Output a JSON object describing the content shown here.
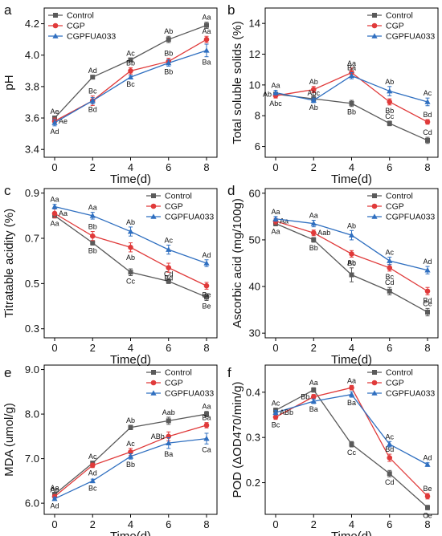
{
  "series_names": [
    "Control",
    "CGP",
    "CGPFUA033"
  ],
  "series_colors": [
    "#5a5a5a",
    "#e03a3a",
    "#2f6fc0"
  ],
  "markers": [
    "square",
    "circle",
    "triangle"
  ],
  "chart_data": [
    {
      "type": "line",
      "panel": "a",
      "xlabel": "Time(d)",
      "ylabel": "pH",
      "x": [
        0,
        2,
        4,
        6,
        8
      ],
      "x_ticks": [
        "0",
        "2",
        "4",
        "6",
        "8"
      ],
      "ylim": [
        3.35,
        4.3
      ],
      "y_ticks": [
        3.4,
        3.6,
        3.8,
        4.0,
        4.2
      ],
      "y_tick_labels": [
        "3.4",
        "3.6",
        "3.8",
        "4.0",
        "4.2"
      ],
      "legend_placement": "top-left",
      "series": [
        {
          "name": "Control",
          "values": [
            3.6,
            3.86,
            3.97,
            4.1,
            4.19
          ],
          "errors": [
            0.01,
            0.01,
            0.01,
            0.02,
            0.02
          ],
          "labels": [
            "Ae",
            "Ad",
            "Ac",
            "Ab",
            "Aa"
          ],
          "label_pos": [
            "above",
            "above",
            "above",
            "above",
            "above"
          ]
        },
        {
          "name": "CGP",
          "values": [
            3.58,
            3.71,
            3.9,
            3.96,
            4.1
          ],
          "errors": [
            0.02,
            0.03,
            0.02,
            0.02,
            0.02
          ],
          "labels": [
            "Ae",
            "Bc",
            "Bb",
            "Bb",
            "Aa"
          ],
          "label_pos": [
            "right",
            "above",
            "above",
            "above",
            "above"
          ]
        },
        {
          "name": "CGPFUA033",
          "values": [
            3.57,
            3.71,
            3.86,
            3.95,
            4.03
          ],
          "errors": [
            0.02,
            0.02,
            0.01,
            0.02,
            0.04
          ],
          "labels": [
            "Ad",
            "Bd",
            "Bc",
            "Bb",
            "Ba"
          ],
          "label_pos": [
            "below",
            "below",
            "below",
            "below",
            "below"
          ]
        }
      ]
    },
    {
      "type": "line",
      "panel": "b",
      "xlabel": "Time(d)",
      "ylabel": "Total soluble solids (%)",
      "x": [
        0,
        2,
        4,
        6,
        8
      ],
      "x_ticks": [
        "0",
        "2",
        "4",
        "6",
        "8"
      ],
      "ylim": [
        5.3,
        15
      ],
      "y_ticks": [
        6,
        8,
        10,
        12,
        14
      ],
      "y_tick_labels": [
        "6",
        "8",
        "10",
        "12",
        "14"
      ],
      "legend_placement": "top-right",
      "series": [
        {
          "name": "Control",
          "values": [
            9.4,
            9.1,
            8.8,
            7.5,
            6.4
          ],
          "errors": [
            0.1,
            0.2,
            0.2,
            0.15,
            0.2
          ],
          "labels": [
            "Ab",
            "Ab",
            "Bb",
            "Cc",
            "Cd"
          ],
          "label_pos": [
            "left",
            "below",
            "below",
            "above",
            "above"
          ]
        },
        {
          "name": "CGP",
          "values": [
            9.3,
            9.7,
            10.8,
            8.9,
            7.6
          ],
          "errors": [
            0.15,
            0.2,
            0.3,
            0.2,
            0.15
          ],
          "labels": [
            "Abc",
            "Ab",
            "Aa",
            "Bb",
            "Bd"
          ],
          "label_pos": [
            "below",
            "above",
            "above",
            "below",
            "above"
          ]
        },
        {
          "name": "CGPFUA033",
          "values": [
            9.5,
            9.0,
            10.6,
            9.6,
            8.9
          ],
          "errors": [
            0.15,
            0.15,
            0.2,
            0.3,
            0.25
          ],
          "labels": [
            "Aa",
            "Abc",
            "Ba",
            "Ab",
            "Ac"
          ],
          "label_pos": [
            "above",
            "above",
            "above",
            "above",
            "above"
          ]
        }
      ]
    },
    {
      "type": "line",
      "panel": "c",
      "xlabel": "Time(d)",
      "ylabel": "Titratable acidity (%)",
      "x": [
        0,
        2,
        4,
        6,
        8
      ],
      "x_ticks": [
        "0",
        "2",
        "4",
        "6",
        "8"
      ],
      "ylim": [
        0.26,
        0.92
      ],
      "y_ticks": [
        0.3,
        0.5,
        0.7,
        0.9
      ],
      "y_tick_labels": [
        "0.3",
        "0.5",
        "0.7",
        "0.9"
      ],
      "legend_placement": "top-right",
      "series": [
        {
          "name": "Control",
          "values": [
            0.8,
            0.68,
            0.55,
            0.51,
            0.44
          ],
          "errors": [
            0.01,
            0.01,
            0.015,
            0.01,
            0.015
          ],
          "labels": [
            "Aa",
            "Bb",
            "Cc",
            "Cd",
            "Be"
          ],
          "label_pos": [
            "below",
            "below",
            "below",
            "above",
            "below"
          ]
        },
        {
          "name": "CGP",
          "values": [
            0.81,
            0.71,
            0.66,
            0.57,
            0.49
          ],
          "errors": [
            0.02,
            0.02,
            0.02,
            0.02,
            0.015
          ],
          "labels": [
            "Aa",
            "Bb",
            "Ab",
            "Bd",
            "Be"
          ],
          "label_pos": [
            "right",
            "above",
            "below",
            "below",
            "below"
          ]
        },
        {
          "name": "CGPFUA033",
          "values": [
            0.84,
            0.8,
            0.73,
            0.65,
            0.59
          ],
          "errors": [
            0.01,
            0.015,
            0.02,
            0.02,
            0.015
          ],
          "labels": [
            "Aa",
            "Aa",
            "Ab",
            "Ac",
            "Ad"
          ],
          "label_pos": [
            "above",
            "above",
            "above",
            "above",
            "above"
          ]
        }
      ]
    },
    {
      "type": "line",
      "panel": "d",
      "xlabel": "Time(d)",
      "ylabel": "Ascorbic acid (mg/100g)",
      "x": [
        0,
        2,
        4,
        6,
        8
      ],
      "x_ticks": [
        "0",
        "2",
        "4",
        "6",
        "8"
      ],
      "ylim": [
        29,
        61
      ],
      "y_ticks": [
        30,
        40,
        50,
        60
      ],
      "y_tick_labels": [
        "30",
        "40",
        "50",
        "60"
      ],
      "legend_placement": "top-right",
      "series": [
        {
          "name": "Control",
          "values": [
            53.5,
            50.0,
            42.5,
            39.0,
            34.5
          ],
          "errors": [
            0.5,
            0.5,
            1.5,
            0.8,
            0.8
          ],
          "labels": [
            "Aa",
            "Bb",
            "Bc",
            "Cd",
            "Ce"
          ],
          "label_pos": [
            "below",
            "below",
            "above",
            "above",
            "above"
          ]
        },
        {
          "name": "CGP",
          "values": [
            54.0,
            51.5,
            47.0,
            44.0,
            39.0
          ],
          "errors": [
            0.6,
            0.6,
            0.7,
            0.7,
            0.8
          ],
          "labels": [
            "Aa",
            "Aab",
            "Ab",
            "Bc",
            "Bd"
          ],
          "label_pos": [
            "right",
            "right",
            "below",
            "below",
            "below"
          ]
        },
        {
          "name": "CGPFUA033",
          "values": [
            54.5,
            53.5,
            51.0,
            45.5,
            43.5
          ],
          "errors": [
            0.5,
            0.7,
            1.0,
            0.8,
            0.8
          ],
          "labels": [
            "Aa",
            "Aa",
            "Ab",
            "Ac",
            "Ad"
          ],
          "label_pos": [
            "above",
            "above",
            "above",
            "above",
            "above"
          ]
        }
      ]
    },
    {
      "type": "line",
      "panel": "e",
      "xlabel": "Time(d)",
      "ylabel": "MDA (umol/g)",
      "x": [
        0,
        2,
        4,
        6,
        8
      ],
      "x_ticks": [
        "0",
        "2",
        "4",
        "6",
        "8"
      ],
      "ylim": [
        5.75,
        9.1
      ],
      "y_ticks": [
        6.0,
        7.0,
        8.0,
        9.0
      ],
      "y_tick_labels": [
        "6.0",
        "7.0",
        "8.0",
        "9.0"
      ],
      "legend_placement": "top-right",
      "series": [
        {
          "name": "Control",
          "values": [
            6.2,
            6.9,
            7.7,
            7.85,
            8.0
          ],
          "errors": [
            0.03,
            0.04,
            0.05,
            0.08,
            0.06
          ],
          "labels": [
            "Ae",
            "Ac",
            "Ab",
            "Aab",
            "Aa"
          ],
          "label_pos": [
            "above",
            "above",
            "above",
            "above",
            "above"
          ]
        },
        {
          "name": "CGP",
          "values": [
            6.15,
            6.85,
            7.15,
            7.5,
            7.75
          ],
          "errors": [
            0.04,
            0.05,
            0.08,
            0.1,
            0.06
          ],
          "labels": [
            "Ae",
            "Ad",
            "Ac",
            "ABb",
            "Ba"
          ],
          "label_pos": [
            "above",
            "below",
            "above",
            "left",
            "above"
          ]
        },
        {
          "name": "CGPFUA033",
          "values": [
            6.1,
            6.5,
            7.05,
            7.35,
            7.45
          ],
          "errors": [
            0.03,
            0.04,
            0.06,
            0.12,
            0.12
          ],
          "labels": [
            "Ad",
            "Bc",
            "Bb",
            "Ba",
            "Ca"
          ],
          "label_pos": [
            "below",
            "below",
            "below",
            "below",
            "below"
          ]
        }
      ]
    },
    {
      "type": "line",
      "panel": "f",
      "xlabel": "Time(d)",
      "ylabel": "POD (ΔOD470/min/g)",
      "x": [
        0,
        2,
        4,
        6,
        8
      ],
      "x_ticks": [
        "0",
        "2",
        "4",
        "6",
        "8"
      ],
      "ylim": [
        0.13,
        0.46
      ],
      "y_ticks": [
        0.2,
        0.3,
        0.4
      ],
      "y_tick_labels": [
        "0.2",
        "0.3",
        "0.4"
      ],
      "legend_placement": "top-right",
      "series": [
        {
          "name": "Control",
          "values": [
            0.36,
            0.405,
            0.285,
            0.22,
            0.145
          ],
          "errors": [
            0.005,
            0.005,
            0.006,
            0.007,
            0.005
          ],
          "labels": [
            "Ac",
            "Aa",
            "Cc",
            "Cd",
            "Ce"
          ],
          "label_pos": [
            "above",
            "above",
            "below",
            "below",
            "below"
          ]
        },
        {
          "name": "CGP",
          "values": [
            0.345,
            0.39,
            0.41,
            0.255,
            0.17
          ],
          "errors": [
            0.005,
            0.005,
            0.005,
            0.008,
            0.006
          ],
          "labels": [
            "Bc",
            "Bb",
            "Aa",
            "Bd",
            "Be"
          ],
          "label_pos": [
            "below",
            "left",
            "above",
            "above",
            "above"
          ]
        },
        {
          "name": "CGPFUA033",
          "values": [
            0.355,
            0.38,
            0.395,
            0.285,
            0.24
          ],
          "errors": [
            0.005,
            0.005,
            0.006,
            0.006,
            0.004
          ],
          "labels": [
            "ABb",
            "Ba",
            "Ba",
            "Ac",
            "Ad"
          ],
          "label_pos": [
            "right",
            "below",
            "below",
            "above",
            "above"
          ]
        }
      ]
    }
  ]
}
